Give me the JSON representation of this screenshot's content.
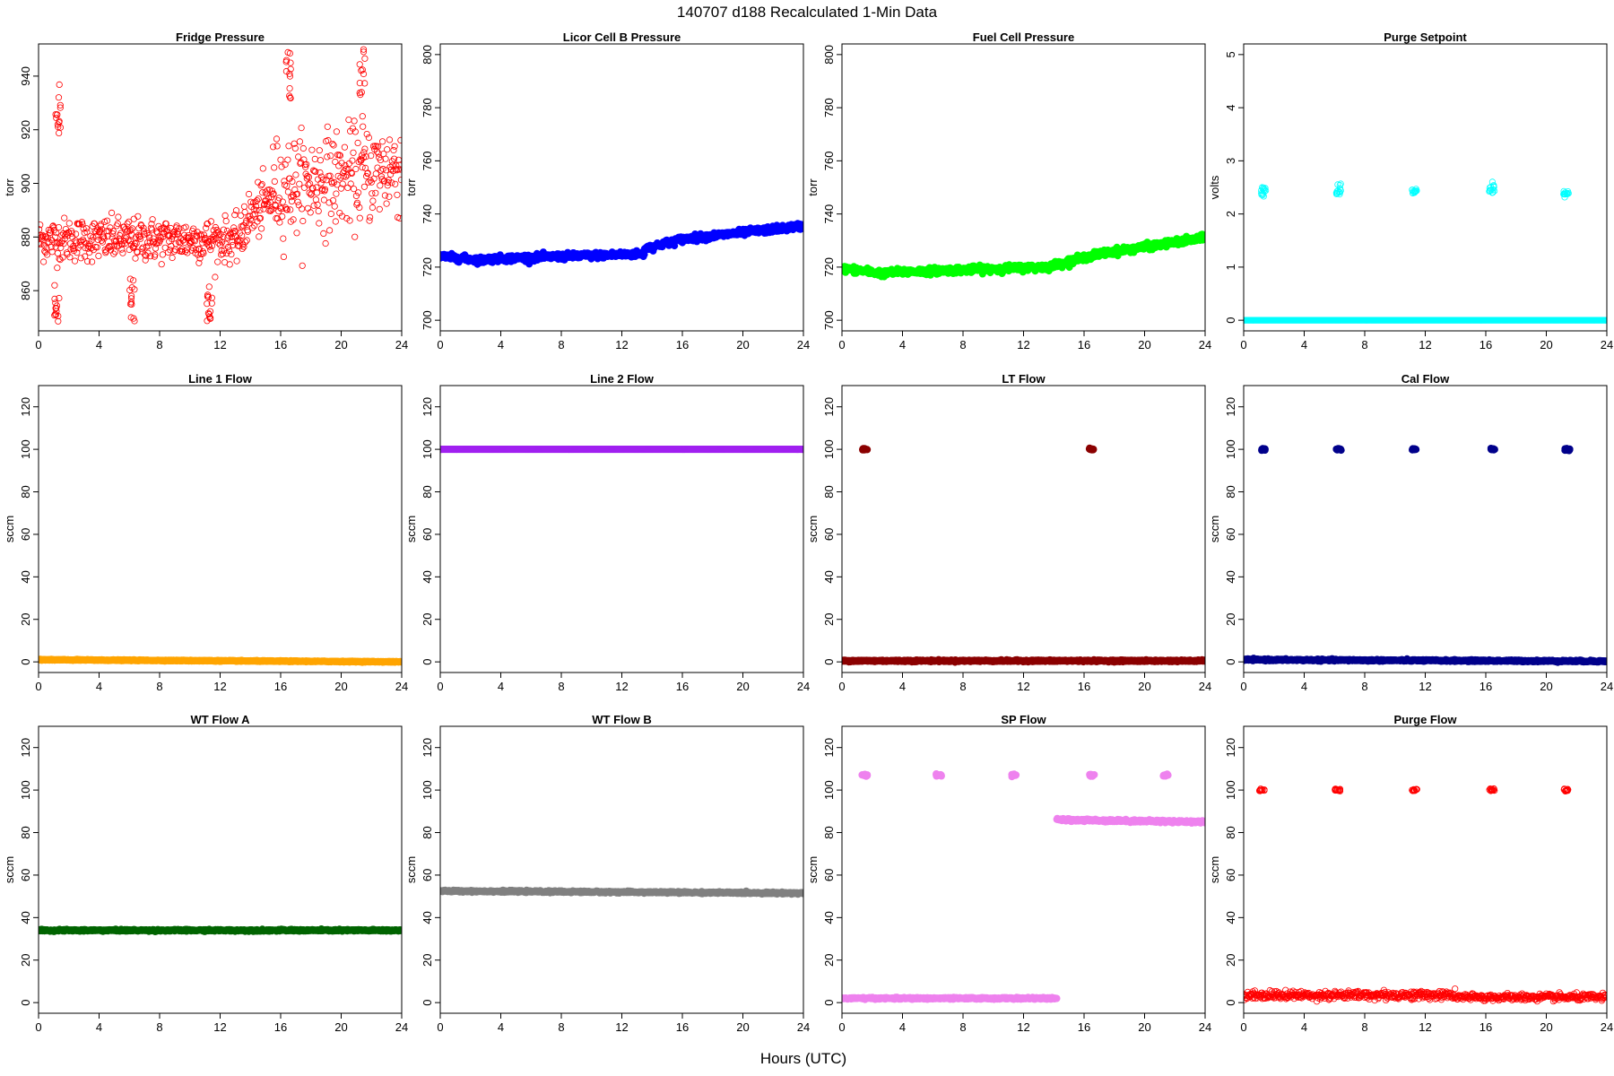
{
  "figure": {
    "title": "140707   d188   Recalculated 1-Min Data",
    "xlabel": "Hours (UTC)"
  },
  "chart_data": [
    {
      "type": "scatter",
      "title": "Fridge Pressure",
      "ylabel": "torr",
      "marker": "open",
      "color": "#ff0000",
      "xlim": [
        0,
        24
      ],
      "ylim": [
        845,
        952
      ],
      "xticks": [
        0,
        4,
        8,
        12,
        16,
        20,
        24
      ],
      "yticks": [
        860,
        880,
        900,
        920,
        940
      ],
      "segments": [
        {
          "x": [
            0,
            13.5
          ],
          "y": [
            879,
            879
          ],
          "noise": 4
        },
        {
          "x": [
            13.5,
            15.5
          ],
          "y": [
            885,
            895
          ],
          "noise": 5
        },
        {
          "x": [
            15.5,
            24
          ],
          "y": [
            898,
            906
          ],
          "noise": 9
        }
      ],
      "clusters": [
        {
          "x": 1.3,
          "y": 928,
          "spread": 6
        },
        {
          "x": 1.2,
          "y": 853,
          "spread": 3
        },
        {
          "x": 6.2,
          "y": 855,
          "spread": 6
        },
        {
          "x": 11.3,
          "y": 852,
          "spread": 5
        },
        {
          "x": 16.5,
          "y": 940,
          "spread": 6
        },
        {
          "x": 21.4,
          "y": 943,
          "spread": 6
        }
      ]
    },
    {
      "type": "scatter",
      "title": "Licor Cell B Pressure",
      "ylabel": "torr",
      "marker": "filled",
      "color": "#0000ff",
      "xlim": [
        0,
        24
      ],
      "ylim": [
        696,
        804
      ],
      "xticks": [
        0,
        4,
        8,
        12,
        16,
        20,
        24
      ],
      "yticks": [
        700,
        720,
        740,
        760,
        780,
        800
      ],
      "segments": [
        {
          "x": [
            0,
            3
          ],
          "y": [
            724,
            722.5
          ],
          "noise": 0.6
        },
        {
          "x": [
            3,
            8
          ],
          "y": [
            723,
            724
          ],
          "noise": 0.6
        },
        {
          "x": [
            8,
            13.5
          ],
          "y": [
            724,
            725
          ],
          "noise": 0.6
        },
        {
          "x": [
            13.5,
            16
          ],
          "y": [
            727,
            730.5
          ],
          "noise": 0.6
        },
        {
          "x": [
            16,
            24
          ],
          "y": [
            730.5,
            735.5
          ],
          "noise": 0.6
        }
      ],
      "clusters": []
    },
    {
      "type": "scatter",
      "title": "Fuel Cell Pressure",
      "ylabel": "torr",
      "marker": "filled",
      "color": "#00ff00",
      "xlim": [
        0,
        24
      ],
      "ylim": [
        696,
        804
      ],
      "xticks": [
        0,
        4,
        8,
        12,
        16,
        20,
        24
      ],
      "yticks": [
        700,
        720,
        740,
        760,
        780,
        800
      ],
      "segments": [
        {
          "x": [
            0,
            3
          ],
          "y": [
            719.5,
            717.5
          ],
          "noise": 0.6
        },
        {
          "x": [
            3,
            8
          ],
          "y": [
            718,
            719
          ],
          "noise": 0.6
        },
        {
          "x": [
            8,
            13.5
          ],
          "y": [
            719,
            720
          ],
          "noise": 0.6
        },
        {
          "x": [
            13.5,
            17
          ],
          "y": [
            720,
            725
          ],
          "noise": 0.6
        },
        {
          "x": [
            17,
            24
          ],
          "y": [
            725,
            731
          ],
          "noise": 0.6
        }
      ],
      "clusters": []
    },
    {
      "type": "scatter",
      "title": "Purge Setpoint",
      "ylabel": "volts",
      "marker": "open",
      "color": "#00ffff",
      "xlim": [
        0,
        24
      ],
      "ylim": [
        -0.2,
        5.2
      ],
      "xticks": [
        0,
        4,
        8,
        12,
        16,
        20,
        24
      ],
      "yticks": [
        0,
        1,
        2,
        3,
        4,
        5
      ],
      "segments": [
        {
          "x": [
            0,
            24
          ],
          "y": [
            0,
            0
          ],
          "noise": 0
        }
      ],
      "clusters": [
        {
          "x": 1.3,
          "y": 2.45,
          "spread": 0.05
        },
        {
          "x": 6.3,
          "y": 2.47,
          "spread": 0.06
        },
        {
          "x": 11.3,
          "y": 2.42,
          "spread": 0.03
        },
        {
          "x": 16.4,
          "y": 2.44,
          "spread": 0.06
        },
        {
          "x": 21.3,
          "y": 2.39,
          "spread": 0.03
        }
      ]
    },
    {
      "type": "scatter",
      "title": "Line 1 Flow",
      "ylabel": "sccm",
      "marker": "filled",
      "color": "#ffa500",
      "xlim": [
        0,
        24
      ],
      "ylim": [
        -5,
        130
      ],
      "xticks": [
        0,
        4,
        8,
        12,
        16,
        20,
        24
      ],
      "yticks": [
        0,
        20,
        40,
        60,
        80,
        100,
        120
      ],
      "segments": [
        {
          "x": [
            0,
            24
          ],
          "y": [
            1,
            0
          ],
          "noise": 0.1
        }
      ],
      "clusters": []
    },
    {
      "type": "scatter",
      "title": "Line 2 Flow",
      "ylabel": "sccm",
      "marker": "filled",
      "color": "#a020f0",
      "xlim": [
        0,
        24
      ],
      "ylim": [
        -5,
        130
      ],
      "xticks": [
        0,
        4,
        8,
        12,
        16,
        20,
        24
      ],
      "yticks": [
        0,
        20,
        40,
        60,
        80,
        100,
        120
      ],
      "segments": [
        {
          "x": [
            0,
            24
          ],
          "y": [
            100,
            100
          ],
          "noise": 0
        }
      ],
      "clusters": []
    },
    {
      "type": "scatter",
      "title": "LT Flow",
      "ylabel": "sccm",
      "marker": "filled",
      "color": "#8b0000",
      "xlim": [
        0,
        24
      ],
      "ylim": [
        -5,
        130
      ],
      "xticks": [
        0,
        4,
        8,
        12,
        16,
        20,
        24
      ],
      "yticks": [
        0,
        20,
        40,
        60,
        80,
        100,
        120
      ],
      "segments": [
        {
          "x": [
            0,
            24
          ],
          "y": [
            0.5,
            0.5
          ],
          "noise": 0.2
        }
      ],
      "clusters": [
        {
          "x": 1.5,
          "y": 100,
          "spread": 0.2
        },
        {
          "x": 16.5,
          "y": 100,
          "spread": 0.2
        }
      ]
    },
    {
      "type": "scatter",
      "title": "Cal Flow",
      "ylabel": "sccm",
      "marker": "filled",
      "color": "#00008b",
      "xlim": [
        0,
        24
      ],
      "ylim": [
        -5,
        130
      ],
      "xticks": [
        0,
        4,
        8,
        12,
        16,
        20,
        24
      ],
      "yticks": [
        0,
        20,
        40,
        60,
        80,
        100,
        120
      ],
      "segments": [
        {
          "x": [
            0,
            24
          ],
          "y": [
            1,
            0.3
          ],
          "noise": 0.2
        }
      ],
      "clusters": [
        {
          "x": 1.3,
          "y": 100,
          "spread": 0.2
        },
        {
          "x": 6.3,
          "y": 100,
          "spread": 0.2
        },
        {
          "x": 11.3,
          "y": 100,
          "spread": 0.2
        },
        {
          "x": 16.5,
          "y": 100,
          "spread": 0.2
        },
        {
          "x": 21.4,
          "y": 100,
          "spread": 0.2
        }
      ]
    },
    {
      "type": "scatter",
      "title": "WT Flow A",
      "ylabel": "sccm",
      "marker": "filled",
      "color": "#006400",
      "xlim": [
        0,
        24
      ],
      "ylim": [
        -5,
        130
      ],
      "xticks": [
        0,
        4,
        8,
        12,
        16,
        20,
        24
      ],
      "yticks": [
        0,
        20,
        40,
        60,
        80,
        100,
        120
      ],
      "segments": [
        {
          "x": [
            0,
            24
          ],
          "y": [
            34,
            34
          ],
          "noise": 0.2
        }
      ],
      "clusters": []
    },
    {
      "type": "scatter",
      "title": "WT Flow B",
      "ylabel": "sccm",
      "marker": "filled",
      "color": "#808080",
      "xlim": [
        0,
        24
      ],
      "ylim": [
        -5,
        130
      ],
      "xticks": [
        0,
        4,
        8,
        12,
        16,
        20,
        24
      ],
      "yticks": [
        0,
        20,
        40,
        60,
        80,
        100,
        120
      ],
      "segments": [
        {
          "x": [
            0,
            24
          ],
          "y": [
            52.5,
            51.5
          ],
          "noise": 0.2
        }
      ],
      "clusters": []
    },
    {
      "type": "scatter",
      "title": "SP Flow",
      "ylabel": "sccm",
      "marker": "filled",
      "color": "#ee82ee",
      "xlim": [
        0,
        24
      ],
      "ylim": [
        -5,
        130
      ],
      "xticks": [
        0,
        4,
        8,
        12,
        16,
        20,
        24
      ],
      "yticks": [
        0,
        20,
        40,
        60,
        80,
        100,
        120
      ],
      "segments": [
        {
          "x": [
            0,
            14.2
          ],
          "y": [
            2,
            2
          ],
          "noise": 0.2
        },
        {
          "x": [
            14.2,
            24
          ],
          "y": [
            86,
            85
          ],
          "noise": 0.3
        }
      ],
      "clusters": [
        {
          "x": 1.5,
          "y": 107,
          "spread": 0.3
        },
        {
          "x": 6.4,
          "y": 107,
          "spread": 0.3
        },
        {
          "x": 11.4,
          "y": 107,
          "spread": 0.3
        },
        {
          "x": 16.5,
          "y": 107,
          "spread": 0.3
        },
        {
          "x": 21.4,
          "y": 107,
          "spread": 0.3
        }
      ]
    },
    {
      "type": "scatter",
      "title": "Purge Flow",
      "ylabel": "sccm",
      "marker": "open",
      "color": "#ff0000",
      "xlim": [
        0,
        24
      ],
      "ylim": [
        -5,
        130
      ],
      "xticks": [
        0,
        4,
        8,
        12,
        16,
        20,
        24
      ],
      "yticks": [
        0,
        20,
        40,
        60,
        80,
        100,
        120
      ],
      "segments": [
        {
          "x": [
            0,
            14
          ],
          "y": [
            3.5,
            3.5
          ],
          "noise": 1
        },
        {
          "x": [
            14,
            24
          ],
          "y": [
            2.5,
            2.5
          ],
          "noise": 0.8
        }
      ],
      "clusters": [
        {
          "x": 1.2,
          "y": 100,
          "spread": 0.3
        },
        {
          "x": 6.2,
          "y": 100,
          "spread": 0.3
        },
        {
          "x": 11.3,
          "y": 100,
          "spread": 0.3
        },
        {
          "x": 16.4,
          "y": 100,
          "spread": 0.3
        },
        {
          "x": 21.3,
          "y": 100,
          "spread": 0.3
        }
      ]
    }
  ]
}
